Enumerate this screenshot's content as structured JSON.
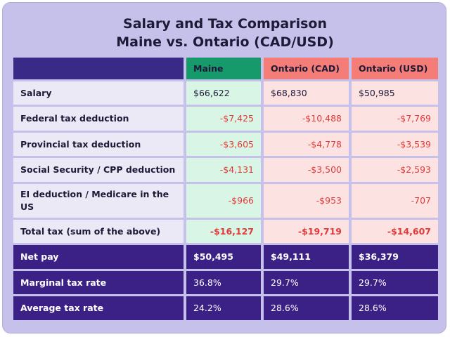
{
  "title_lines": [
    "Salary and Tax Comparison",
    "Maine vs. Ontario (CAD/USD)"
  ],
  "table": {
    "header": [
      "Maine",
      "Ontario (CAD)",
      "Ontario (USD)"
    ],
    "rows": [
      {
        "label": "Salary",
        "cells": [
          "$66,622",
          "$68,830",
          "$50,985"
        ]
      },
      {
        "label": "Federal tax deduction",
        "cells": [
          "-$7,425",
          "-$10,488",
          "-$7,769"
        ]
      },
      {
        "label": "Provincial tax deduction",
        "cells": [
          "-$3,605",
          "-$4,778",
          "-$3,539"
        ]
      },
      {
        "label": "Social Security / CPP deduction",
        "cells": [
          "-$4,131",
          "-$3,500",
          "-$2,593"
        ]
      },
      {
        "label": "EI deduction / Medicare in the US",
        "cells": [
          "-$966",
          "-$953",
          "-707"
        ]
      },
      {
        "label": "Total tax (sum of the above)",
        "cells": [
          "-$16,127",
          "-$19,719",
          "-$14,607"
        ]
      },
      {
        "label": "Net pay",
        "cells": [
          "$50,495",
          "$49,111",
          "$36,379"
        ]
      },
      {
        "label": "Marginal tax rate",
        "cells": [
          "36.8%",
          "29.7%",
          "29.7%"
        ]
      },
      {
        "label": "Average tax rate",
        "cells": [
          "24.2%",
          "28.6%",
          "28.6%"
        ]
      }
    ]
  }
}
